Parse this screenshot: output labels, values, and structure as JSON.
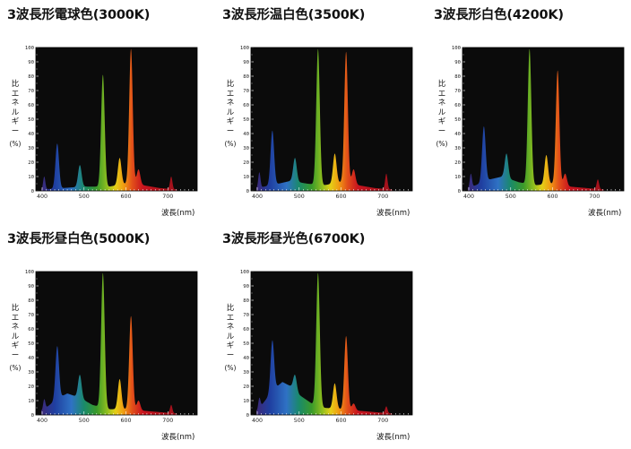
{
  "axis": {
    "ylabel": "比エネルギー(%)",
    "ylabel_chars": [
      "比",
      "エ",
      "ネ",
      "ル",
      "ギ",
      "ー",
      "(%)"
    ],
    "xlabel": "波長(nm)",
    "yticks": [
      0,
      10,
      20,
      30,
      40,
      50,
      60,
      70,
      80,
      90,
      100
    ],
    "xticks": [
      400,
      500,
      600,
      700
    ],
    "xlim": [
      385,
      770
    ],
    "ylim": [
      0,
      100
    ]
  },
  "spectrum_colors": [
    {
      "at": 400,
      "color": "#3b2a7a"
    },
    {
      "at": 430,
      "color": "#1f3fa0"
    },
    {
      "at": 470,
      "color": "#2f72c4"
    },
    {
      "at": 500,
      "color": "#1a8a6a"
    },
    {
      "at": 530,
      "color": "#3a9a2a"
    },
    {
      "at": 555,
      "color": "#8fbf1f"
    },
    {
      "at": 575,
      "color": "#e5cf17"
    },
    {
      "at": 595,
      "color": "#f09a12"
    },
    {
      "at": 615,
      "color": "#e2501a"
    },
    {
      "at": 640,
      "color": "#c8141e"
    },
    {
      "at": 700,
      "color": "#a8121c"
    },
    {
      "at": 770,
      "color": "#8a0f18"
    }
  ],
  "chart_data": [
    {
      "type": "area",
      "title": "3波長形電球色(3000K)",
      "xlabel": "波長(nm)",
      "ylabel": "比エネルギー(%)",
      "xlim": [
        385,
        770
      ],
      "ylim": [
        0,
        100
      ],
      "peaks": [
        {
          "wavelength": 405,
          "value": 10
        },
        {
          "wavelength": 436,
          "value": 33
        },
        {
          "wavelength": 490,
          "value": 18
        },
        {
          "wavelength": 545,
          "value": 81
        },
        {
          "wavelength": 585,
          "value": 23
        },
        {
          "wavelength": 612,
          "value": 99
        },
        {
          "wavelength": 630,
          "value": 15
        },
        {
          "wavelength": 708,
          "value": 10
        }
      ],
      "baseline": [
        [
          400,
          1
        ],
        [
          450,
          2
        ],
        [
          500,
          3
        ],
        [
          560,
          3
        ],
        [
          600,
          5
        ],
        [
          640,
          4
        ],
        [
          680,
          2
        ],
        [
          720,
          1
        ],
        [
          760,
          0
        ]
      ]
    },
    {
      "type": "area",
      "title": "3波長形温白色(3500K)",
      "xlabel": "波長(nm)",
      "ylabel": "比エネルギー(%)",
      "xlim": [
        385,
        770
      ],
      "ylim": [
        0,
        100
      ],
      "peaks": [
        {
          "wavelength": 405,
          "value": 13
        },
        {
          "wavelength": 436,
          "value": 42
        },
        {
          "wavelength": 490,
          "value": 23
        },
        {
          "wavelength": 545,
          "value": 99
        },
        {
          "wavelength": 585,
          "value": 26
        },
        {
          "wavelength": 612,
          "value": 97
        },
        {
          "wavelength": 630,
          "value": 15
        },
        {
          "wavelength": 708,
          "value": 12
        }
      ],
      "baseline": [
        [
          400,
          2
        ],
        [
          450,
          5
        ],
        [
          480,
          7
        ],
        [
          520,
          5
        ],
        [
          560,
          4
        ],
        [
          600,
          6
        ],
        [
          640,
          4
        ],
        [
          680,
          2
        ],
        [
          720,
          1
        ],
        [
          760,
          0
        ]
      ]
    },
    {
      "type": "area",
      "title": "3波長形白色(4200K)",
      "xlabel": "波長(nm)",
      "ylabel": "比エネルギー(%)",
      "xlim": [
        385,
        770
      ],
      "ylim": [
        0,
        100
      ],
      "peaks": [
        {
          "wavelength": 405,
          "value": 12
        },
        {
          "wavelength": 436,
          "value": 45
        },
        {
          "wavelength": 490,
          "value": 26
        },
        {
          "wavelength": 545,
          "value": 99
        },
        {
          "wavelength": 585,
          "value": 25
        },
        {
          "wavelength": 612,
          "value": 84
        },
        {
          "wavelength": 630,
          "value": 12
        },
        {
          "wavelength": 708,
          "value": 8
        }
      ],
      "baseline": [
        [
          400,
          2
        ],
        [
          450,
          8
        ],
        [
          480,
          10
        ],
        [
          520,
          6
        ],
        [
          560,
          4
        ],
        [
          600,
          5
        ],
        [
          640,
          3
        ],
        [
          680,
          2
        ],
        [
          720,
          1
        ],
        [
          760,
          0
        ]
      ]
    },
    {
      "type": "area",
      "title": "3波長形昼白色(5000K)",
      "xlabel": "波長(nm)",
      "ylabel": "比エネルギー(%)",
      "xlim": [
        385,
        770
      ],
      "ylim": [
        0,
        100
      ],
      "peaks": [
        {
          "wavelength": 405,
          "value": 11
        },
        {
          "wavelength": 436,
          "value": 48
        },
        {
          "wavelength": 490,
          "value": 28
        },
        {
          "wavelength": 545,
          "value": 99
        },
        {
          "wavelength": 585,
          "value": 25
        },
        {
          "wavelength": 612,
          "value": 69
        },
        {
          "wavelength": 630,
          "value": 10
        },
        {
          "wavelength": 708,
          "value": 7
        }
      ],
      "baseline": [
        [
          400,
          3
        ],
        [
          440,
          12
        ],
        [
          460,
          15
        ],
        [
          490,
          12
        ],
        [
          520,
          7
        ],
        [
          560,
          4
        ],
        [
          600,
          4
        ],
        [
          640,
          3
        ],
        [
          680,
          2
        ],
        [
          720,
          1
        ],
        [
          760,
          0
        ]
      ]
    },
    {
      "type": "area",
      "title": "3波長形昼光色(6700K)",
      "xlabel": "波長(nm)",
      "ylabel": "比エネルギー(%)",
      "xlim": [
        385,
        770
      ],
      "ylim": [
        0,
        100
      ],
      "peaks": [
        {
          "wavelength": 405,
          "value": 12
        },
        {
          "wavelength": 436,
          "value": 52
        },
        {
          "wavelength": 490,
          "value": 28
        },
        {
          "wavelength": 545,
          "value": 99
        },
        {
          "wavelength": 585,
          "value": 22
        },
        {
          "wavelength": 612,
          "value": 55
        },
        {
          "wavelength": 630,
          "value": 8
        },
        {
          "wavelength": 708,
          "value": 6
        }
      ],
      "baseline": [
        [
          400,
          3
        ],
        [
          440,
          18
        ],
        [
          460,
          23
        ],
        [
          480,
          20
        ],
        [
          500,
          14
        ],
        [
          530,
          8
        ],
        [
          560,
          5
        ],
        [
          600,
          4
        ],
        [
          640,
          3
        ],
        [
          680,
          2
        ],
        [
          720,
          1
        ],
        [
          760,
          0
        ]
      ]
    }
  ]
}
